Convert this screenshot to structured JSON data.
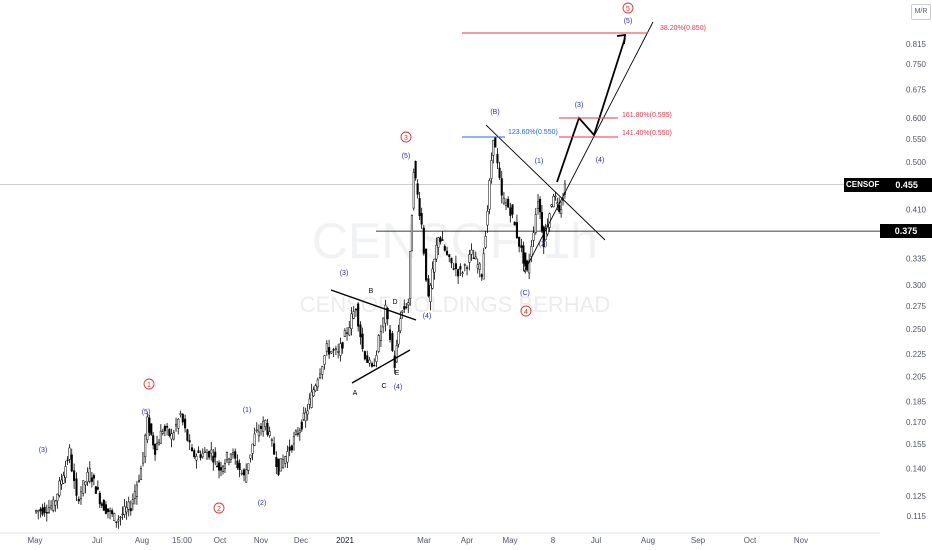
{
  "chart_data": {
    "type": "candlestick",
    "symbol": "CENSOF",
    "timeframe": "1h",
    "watermark": [
      "CENSOF, 1h",
      "CENSOF HOLDINGS BERHAD"
    ],
    "y_scale": "log",
    "y_ticks": [
      "0.815",
      "0.750",
      "0.675",
      "0.600",
      "0.550",
      "0.500",
      "0.455",
      "0.410",
      "0.375",
      "0.335",
      "0.300",
      "0.275",
      "0.250",
      "0.225",
      "0.205",
      "0.185",
      "0.170",
      "0.155",
      "0.140",
      "0.125",
      "0.115"
    ],
    "x_ticks": [
      "May",
      "Jul",
      "Aug",
      "15:00",
      "Oct",
      "Nov",
      "Dec",
      "2021",
      "Mar",
      "Apr",
      "May",
      "8",
      "Jul",
      "Aug",
      "Sep",
      "Oct",
      "Nov"
    ],
    "last_price": "0.455",
    "horizontal_line_label": "0.375",
    "path": [
      [
        "2020-05-01",
        0.117
      ],
      [
        "2020-05-20",
        0.12
      ],
      [
        "2020-06-05",
        0.15
      ],
      [
        "2020-06-12",
        0.123
      ],
      [
        "2020-06-25",
        0.138
      ],
      [
        "2020-07-05",
        0.121
      ],
      [
        "2020-07-15",
        0.113
      ],
      [
        "2020-07-25",
        0.12
      ],
      [
        "2020-08-01",
        0.14
      ],
      [
        "2020-08-06",
        0.17
      ],
      [
        "2020-08-12",
        0.152
      ],
      [
        "2020-08-18",
        0.165
      ],
      [
        "2020-08-25",
        0.16
      ],
      [
        "2020-09-01",
        0.175
      ],
      [
        "2020-09-10",
        0.148
      ],
      [
        "2020-09-25",
        0.15
      ],
      [
        "2020-10-01",
        0.14
      ],
      [
        "2020-10-10",
        0.15
      ],
      [
        "2020-10-20",
        0.135
      ],
      [
        "2020-10-28",
        0.16
      ],
      [
        "2020-11-05",
        0.17
      ],
      [
        "2020-11-15",
        0.14
      ],
      [
        "2020-11-25",
        0.155
      ],
      [
        "2020-12-05",
        0.175
      ],
      [
        "2020-12-12",
        0.2
      ],
      [
        "2020-12-20",
        0.23
      ],
      [
        "2020-12-28",
        0.225
      ],
      [
        "2021-01-05",
        0.255
      ],
      [
        "2021-01-10",
        0.275
      ],
      [
        "2021-01-15",
        0.23
      ],
      [
        "2021-01-22",
        0.21
      ],
      [
        "2021-02-01",
        0.27
      ],
      [
        "2021-02-08",
        0.215
      ],
      [
        "2021-02-12",
        0.265
      ],
      [
        "2021-02-18",
        0.28
      ],
      [
        "2021-02-22",
        0.49
      ],
      [
        "2021-02-28",
        0.385
      ],
      [
        "2021-03-05",
        0.28
      ],
      [
        "2021-03-12",
        0.37
      ],
      [
        "2021-03-20",
        0.33
      ],
      [
        "2021-03-28",
        0.315
      ],
      [
        "2021-04-05",
        0.34
      ],
      [
        "2021-04-12",
        0.315
      ],
      [
        "2021-04-16",
        0.41
      ],
      [
        "2021-04-20",
        0.56
      ],
      [
        "2021-04-26",
        0.43
      ],
      [
        "2021-05-02",
        0.41
      ],
      [
        "2021-05-10",
        0.345
      ],
      [
        "2021-05-14",
        0.315
      ],
      [
        "2021-05-22",
        0.43
      ],
      [
        "2021-05-26",
        0.36
      ],
      [
        "2021-06-02",
        0.44
      ],
      [
        "2021-06-06",
        0.4
      ],
      [
        "2021-06-10",
        0.45
      ]
    ],
    "waves": {
      "circled": [
        "1",
        "2",
        "3",
        "4",
        "5"
      ],
      "minor": [
        "(1)",
        "(2)",
        "(3)",
        "(4)",
        "(5)"
      ],
      "corrective": [
        "(B)",
        "(C)",
        "(A)",
        "(4)"
      ],
      "triangle": [
        "A",
        "B",
        "C",
        "D",
        "E"
      ]
    },
    "fibonacci": [
      {
        "label": "38.20%(0.850)",
        "color": "#f23645"
      },
      {
        "label": "161.80%(0.595)",
        "color": "#f23645"
      },
      {
        "label": "141.40%(0.550)",
        "color": "#f23645"
      },
      {
        "label": "123.60%(0.550)",
        "color": "#2962ff"
      }
    ],
    "colors": {
      "candles": "#000000",
      "fib_red": "#f23645",
      "fib_blue": "#2962ff",
      "wave_blue": "#2a2ac8",
      "wave_red": "#e0332f",
      "axis_text": "#505563"
    }
  },
  "ui": {
    "mode_label": "M/R"
  }
}
